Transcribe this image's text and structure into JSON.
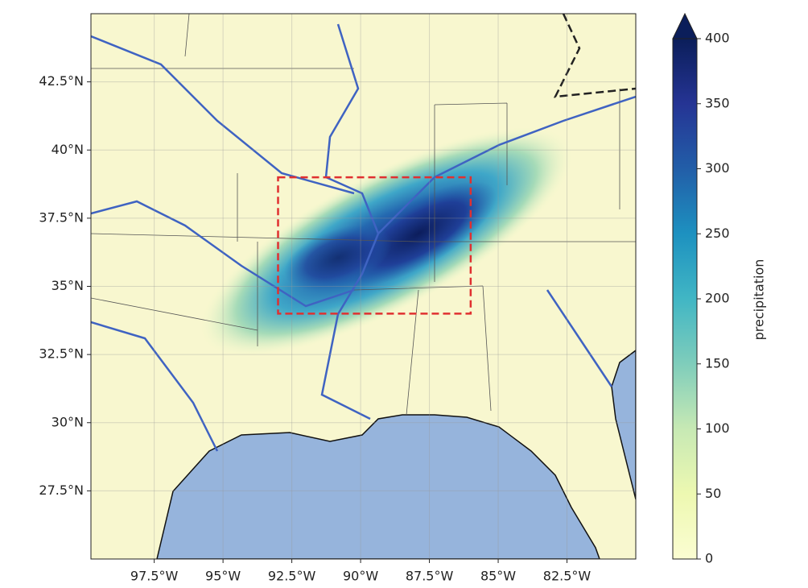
{
  "chart_data": {
    "type": "map",
    "xlim": [
      -99.8,
      -80
    ],
    "ylim": [
      25,
      45
    ],
    "xticks": [
      {
        "value": -97.5,
        "label": "97.5°W"
      },
      {
        "value": -95,
        "label": "95°W"
      },
      {
        "value": -92.5,
        "label": "92.5°W"
      },
      {
        "value": -90,
        "label": "90°W"
      },
      {
        "value": -87.5,
        "label": "87.5°W"
      },
      {
        "value": -85,
        "label": "85°W"
      },
      {
        "value": -82.5,
        "label": "82.5°W"
      }
    ],
    "yticks": [
      {
        "value": 27.5,
        "label": "27.5°N"
      },
      {
        "value": 30,
        "label": "30°N"
      },
      {
        "value": 32.5,
        "label": "32.5°N"
      },
      {
        "value": 35,
        "label": "35°N"
      },
      {
        "value": 37.5,
        "label": "37.5°N"
      },
      {
        "value": 40,
        "label": "40°N"
      },
      {
        "value": 42.5,
        "label": "42.5°N"
      }
    ],
    "grid": true,
    "box": {
      "lon": [
        -93,
        -86
      ],
      "lat": [
        34,
        39
      ],
      "color": "#e03030"
    },
    "colorbar": {
      "label": "precipitation",
      "lim": [
        0,
        400
      ],
      "ticks": [
        0,
        50,
        100,
        150,
        200,
        250,
        300,
        350,
        400
      ]
    }
  }
}
